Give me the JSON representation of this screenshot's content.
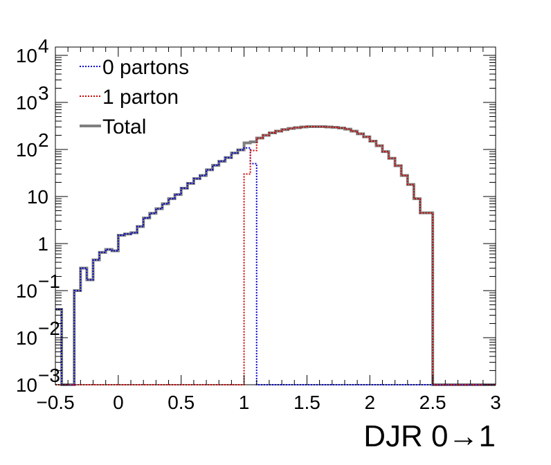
{
  "chart_data": {
    "type": "line",
    "title": "",
    "xlabel": "DJR 0→1",
    "ylabel": "",
    "xlim": [
      -0.5,
      3
    ],
    "ylim": [
      0.001,
      15000
    ],
    "yscale": "log",
    "grid": false,
    "legend_position": "top-left",
    "x_ticks": [
      {
        "value": -0.5,
        "label": "−0.5"
      },
      {
        "value": 0,
        "label": "0"
      },
      {
        "value": 0.5,
        "label": "0.5"
      },
      {
        "value": 1,
        "label": "1"
      },
      {
        "value": 1.5,
        "label": "1.5"
      },
      {
        "value": 2,
        "label": "2"
      },
      {
        "value": 2.5,
        "label": "2.5"
      },
      {
        "value": 3,
        "label": "3"
      }
    ],
    "y_ticks": [
      {
        "value": 0.001,
        "base": "10",
        "exp": "−3"
      },
      {
        "value": 0.01,
        "base": "10",
        "exp": "−2"
      },
      {
        "value": 0.1,
        "base": "10",
        "exp": "−1"
      },
      {
        "value": 1,
        "base": "1",
        "exp": ""
      },
      {
        "value": 10,
        "base": "10",
        "exp": ""
      },
      {
        "value": 100,
        "base": "10",
        "exp": "2"
      },
      {
        "value": 1000,
        "base": "10",
        "exp": "3"
      },
      {
        "value": 10000,
        "base": "10",
        "exp": "4"
      }
    ],
    "bins": {
      "start": -0.5,
      "width": 0.05,
      "count": 70
    },
    "series": [
      {
        "name": "0 partons",
        "color": "#0000cc",
        "style": "dotted",
        "values": [
          0.04,
          0.001,
          0.001,
          0.1,
          0.3,
          0.17,
          0.45,
          0.65,
          0.75,
          0.7,
          1.5,
          1.6,
          1.7,
          2.3,
          3.5,
          4.4,
          5.5,
          7,
          9,
          11,
          15,
          19,
          24,
          28,
          37,
          46,
          56,
          67,
          84,
          98,
          108,
          50,
          0.001,
          0.001,
          0.001,
          0.001,
          0.001,
          0.001,
          0.001,
          0.001,
          0.001,
          0.001,
          0.001,
          0.001,
          0.001,
          0.001,
          0.001,
          0.001,
          0.001,
          0.001,
          0.001,
          0.001,
          0.001,
          0.001,
          0.001,
          0.001,
          0.001,
          0.001,
          0.001,
          0.001,
          0.001,
          0.001,
          0.001,
          0.001,
          0.001,
          0.001,
          0.001,
          0.001,
          0.001,
          0.001
        ]
      },
      {
        "name": "1 parton",
        "color": "#cc0000",
        "style": "dotted",
        "values": [
          0.001,
          0.001,
          0.001,
          0.001,
          0.001,
          0.001,
          0.001,
          0.001,
          0.001,
          0.001,
          0.001,
          0.001,
          0.001,
          0.001,
          0.001,
          0.001,
          0.001,
          0.001,
          0.001,
          0.001,
          0.001,
          0.001,
          0.001,
          0.001,
          0.001,
          0.001,
          0.001,
          0.001,
          0.001,
          0.001,
          30,
          95,
          175,
          200,
          225,
          245,
          265,
          280,
          290,
          300,
          305,
          305,
          305,
          300,
          295,
          285,
          270,
          245,
          215,
          185,
          150,
          120,
          90,
          65,
          45,
          28,
          18,
          9,
          4.5,
          4.5,
          0.001,
          0.001,
          0.001,
          0.001,
          0.001,
          0.001,
          0.001,
          0.001,
          0.001,
          0.001
        ]
      },
      {
        "name": "Total",
        "color": "#7f7f7f",
        "style": "solid",
        "values": [
          0.04,
          0.001,
          0.001,
          0.1,
          0.3,
          0.17,
          0.45,
          0.65,
          0.75,
          0.7,
          1.5,
          1.6,
          1.7,
          2.3,
          3.5,
          4.4,
          5.5,
          7,
          9,
          11,
          15,
          19,
          24,
          28,
          37,
          46,
          56,
          67,
          84,
          98,
          138,
          145,
          175,
          200,
          225,
          245,
          265,
          280,
          290,
          300,
          305,
          305,
          305,
          300,
          295,
          285,
          270,
          245,
          215,
          185,
          150,
          120,
          90,
          65,
          45,
          28,
          18,
          9,
          4.5,
          4.5,
          0.001,
          0.001,
          0.001,
          0.001,
          0.001,
          0.001,
          0.001,
          0.001,
          0.001,
          0.001
        ]
      }
    ]
  }
}
